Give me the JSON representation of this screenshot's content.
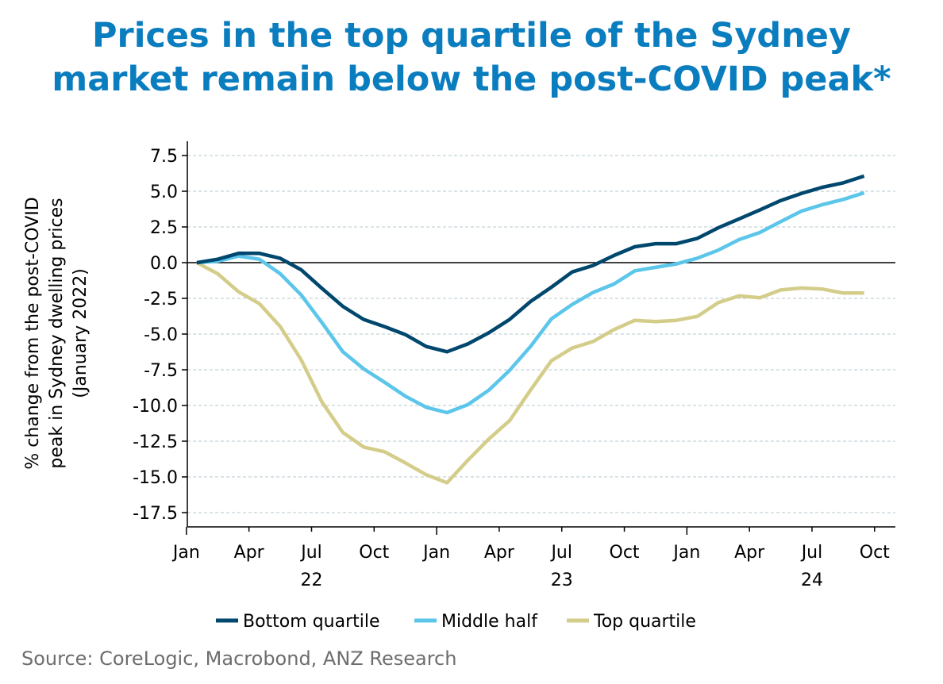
{
  "title_lines": [
    "Prices in the top quartile of the Sydney",
    "market remain below the post-COVID peak*"
  ],
  "source": "Source: CoreLogic, Macrobond, ANZ Research",
  "chart_data": {
    "type": "line",
    "title": "Prices in the top quartile of the Sydney market remain below the post-COVID peak*",
    "ylabel_lines": [
      "% change from the post-COVID",
      "peak in Sydney dwelling prices",
      "(January 2022)"
    ],
    "xlabel": "",
    "ylim": [
      -18.5,
      8.5
    ],
    "yticks": [
      7.5,
      5.0,
      2.5,
      0.0,
      -2.5,
      -5.0,
      -7.5,
      -10.0,
      -12.5,
      -15.0,
      -17.5
    ],
    "ytick_labels": [
      "7.5",
      "5.0",
      "2.5",
      "0.0",
      "-2.5",
      "-5.0",
      "-7.5",
      "-10.0",
      "-12.5",
      "-15.0",
      "-17.5"
    ],
    "xtick_labels": [
      "Jan",
      "Apr",
      "Jul",
      "Oct",
      "Jan",
      "Apr",
      "Jul",
      "Oct",
      "Jan",
      "Apr",
      "Jul",
      "Oct"
    ],
    "year_labels": [
      {
        "label": "22",
        "under": "Jul"
      },
      {
        "label": "23",
        "under": "Jul"
      },
      {
        "label": "24",
        "under": "Jul"
      }
    ],
    "x_start": "2022-01",
    "x_frequency": "monthly",
    "grid": true,
    "legend_position": "bottom",
    "series": [
      {
        "name": "Bottom quartile",
        "color": "#00476e",
        "values": [
          0.0,
          0.24,
          0.65,
          0.65,
          0.3,
          -0.5,
          -1.8,
          -3.06,
          -3.98,
          -4.48,
          -5.04,
          -5.87,
          -6.24,
          -5.69,
          -4.91,
          -3.98,
          -2.72,
          -1.72,
          -0.65,
          -0.2,
          0.5,
          1.11,
          1.33,
          1.33,
          1.7,
          2.44,
          3.06,
          3.69,
          4.35,
          4.85,
          5.28,
          5.59,
          6.06
        ]
      },
      {
        "name": "Middle half",
        "color": "#5bc6ea",
        "values": [
          0.0,
          0.1,
          0.46,
          0.24,
          -0.78,
          -2.26,
          -4.2,
          -6.24,
          -7.44,
          -8.37,
          -9.35,
          -10.13,
          -10.5,
          -9.94,
          -8.93,
          -7.54,
          -5.87,
          -3.94,
          -2.93,
          -2.09,
          -1.5,
          -0.57,
          -0.33,
          -0.09,
          0.31,
          0.87,
          1.61,
          2.11,
          2.87,
          3.61,
          4.06,
          4.43,
          4.89
        ]
      },
      {
        "name": "Top quartile",
        "color": "#d4cd8a",
        "values": [
          0.0,
          -0.78,
          -2.04,
          -2.87,
          -4.48,
          -6.8,
          -9.76,
          -11.89,
          -12.91,
          -13.24,
          -14.02,
          -14.85,
          -15.41,
          -13.83,
          -12.35,
          -11.06,
          -8.93,
          -6.87,
          -5.98,
          -5.52,
          -4.69,
          -4.04,
          -4.13,
          -4.04,
          -3.76,
          -2.8,
          -2.33,
          -2.46,
          -1.91,
          -1.78,
          -1.85,
          -2.13,
          -2.13
        ]
      }
    ]
  }
}
